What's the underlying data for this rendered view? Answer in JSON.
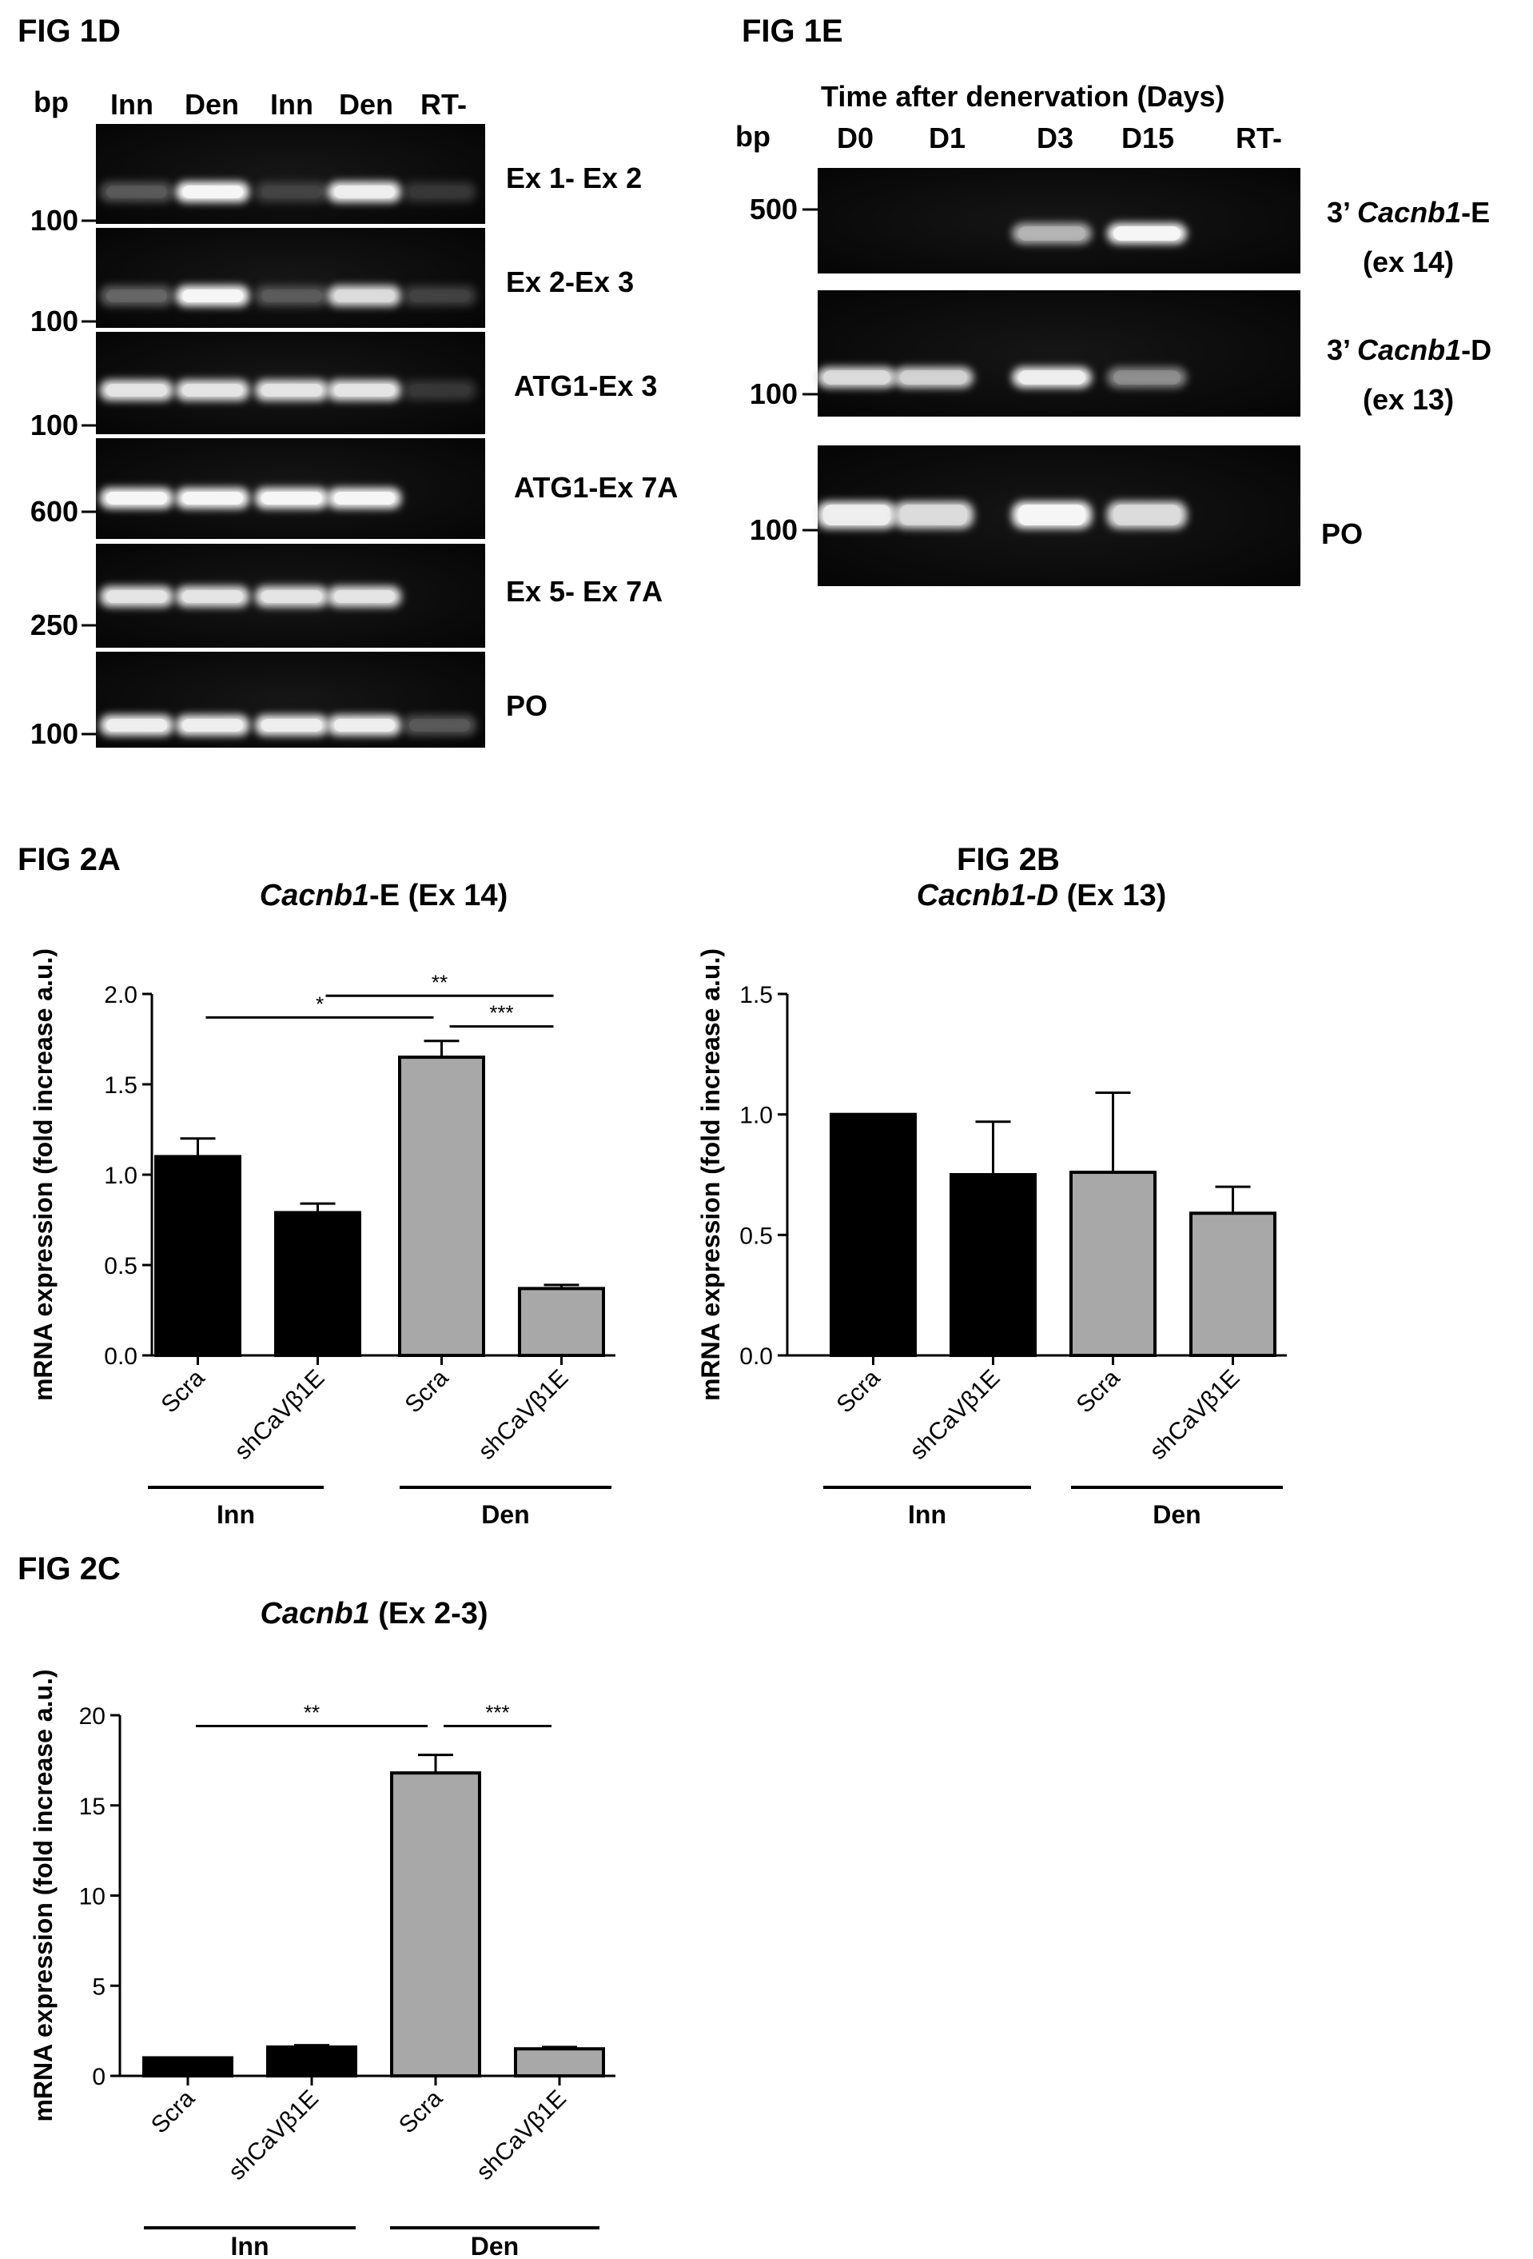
{
  "fig1d": {
    "panel_label": "FIG 1D",
    "bp_label": "bp",
    "lanes": [
      "Inn",
      "Den",
      "Inn",
      "Den",
      "RT-"
    ],
    "rows": [
      {
        "label": "Ex 1- Ex 2",
        "marker": "100",
        "bands": [
          0.25,
          0.95,
          0.15,
          0.9,
          0.1
        ]
      },
      {
        "label": "Ex 2-Ex 3",
        "marker": "100",
        "bands": [
          0.3,
          0.95,
          0.25,
          0.8,
          0.15
        ]
      },
      {
        "label": "ATG1-Ex 3",
        "marker": "100",
        "bands": [
          0.85,
          0.85,
          0.85,
          0.85,
          0.1
        ]
      },
      {
        "label": "ATG1-Ex 7A",
        "marker": "600",
        "bands": [
          0.95,
          0.95,
          0.95,
          0.95,
          0.0
        ]
      },
      {
        "label": "Ex 5- Ex 7A",
        "marker": "250",
        "bands": [
          0.85,
          0.85,
          0.85,
          0.85,
          0.0
        ]
      },
      {
        "label": "PO",
        "marker": "100",
        "bands": [
          0.9,
          0.9,
          0.9,
          0.9,
          0.25
        ]
      }
    ]
  },
  "fig1e": {
    "panel_label": "FIG 1E",
    "header": "Time after denervation (Days)",
    "bp_label": "bp",
    "lanes": [
      "D0",
      "D1",
      "D3",
      "D15",
      "RT-"
    ],
    "rows": [
      {
        "label_prefix": "3’ ",
        "label_italic": "Cacnb1",
        "label_suffix": "-E",
        "label_line2": "(ex 14)",
        "marker": "500",
        "bands": [
          0.0,
          0.0,
          0.6,
          0.95,
          0.0
        ]
      },
      {
        "label_prefix": "3’ ",
        "label_italic": "Cacnb1",
        "label_suffix": "-D",
        "label_line2": "(ex 13)",
        "marker": "100",
        "bands": [
          0.8,
          0.75,
          0.9,
          0.45,
          0.0
        ]
      },
      {
        "label_prefix": "PO",
        "label_italic": "",
        "label_suffix": "",
        "label_line2": "",
        "marker": "100",
        "bands": [
          0.9,
          0.8,
          0.95,
          0.8,
          0.0
        ]
      }
    ]
  },
  "chart_data": [
    {
      "id": "fig2a",
      "type": "bar",
      "panel_label": "FIG 2A",
      "title_italic": "Cacnb1",
      "title_rest": "-E (Ex 14)",
      "ylabel": "mRNA expression (fold increase a.u.)",
      "categories": [
        "Scra",
        "shCaVβ1E",
        "Scra",
        "shCaVβ1E"
      ],
      "groups": [
        {
          "label": "Inn",
          "span": [
            0,
            1
          ]
        },
        {
          "label": "Den",
          "span": [
            2,
            3
          ]
        }
      ],
      "values": [
        1.1,
        0.79,
        1.65,
        0.37
      ],
      "errors": [
        0.1,
        0.05,
        0.09,
        0.02
      ],
      "bar_colors": [
        "#000000",
        "#000000",
        "#a8a8a8",
        "#a8a8a8"
      ],
      "ylim": [
        0,
        2.0
      ],
      "yticks": [
        "0.0",
        "0.5",
        "1.0",
        "1.5",
        "2.0"
      ],
      "significance": [
        {
          "from": 0,
          "to": 2,
          "label": "*",
          "y": 1.87
        },
        {
          "from": 1,
          "to": 3,
          "label": "**",
          "y": 1.99
        },
        {
          "from": 2,
          "to": 3,
          "label": "***",
          "y": 1.82
        }
      ]
    },
    {
      "id": "fig2b",
      "type": "bar",
      "panel_label": "FIG 2B",
      "title_italic": "Cacnb1-D",
      "title_rest": " (Ex 13)",
      "ylabel": "mRNA expression (fold increase a.u.)",
      "categories": [
        "Scra",
        "shCaVβ1E",
        "Scra",
        "shCaVβ1E"
      ],
      "groups": [
        {
          "label": "Inn",
          "span": [
            0,
            1
          ]
        },
        {
          "label": "Den",
          "span": [
            2,
            3
          ]
        }
      ],
      "values": [
        1.0,
        0.75,
        0.76,
        0.59
      ],
      "errors": [
        0.0,
        0.22,
        0.33,
        0.11
      ],
      "bar_colors": [
        "#000000",
        "#000000",
        "#a8a8a8",
        "#a8a8a8"
      ],
      "ylim": [
        0,
        1.5
      ],
      "yticks": [
        "0.0",
        "0.5",
        "1.0",
        "1.5"
      ],
      "significance": []
    },
    {
      "id": "fig2c",
      "type": "bar",
      "panel_label": "FIG 2C",
      "title_italic": "Cacnb1",
      "title_rest": " (Ex 2-3)",
      "ylabel": "mRNA expression (fold increase a.u.)",
      "categories": [
        "Scra",
        "shCaVβ1E",
        "Scra",
        "shCaVβ1E"
      ],
      "groups": [
        {
          "label": "Inn",
          "span": [
            0,
            1
          ]
        },
        {
          "label": "Den",
          "span": [
            2,
            3
          ]
        }
      ],
      "values": [
        1.0,
        1.6,
        16.8,
        1.5
      ],
      "errors": [
        0.0,
        0.1,
        1.0,
        0.1
      ],
      "bar_colors": [
        "#000000",
        "#000000",
        "#a8a8a8",
        "#a8a8a8"
      ],
      "ylim": [
        0,
        20
      ],
      "yticks": [
        "0",
        "5",
        "10",
        "15",
        "20"
      ],
      "significance": [
        {
          "from": 0,
          "to": 2,
          "label": "**",
          "y": 19.4
        },
        {
          "from": 2,
          "to": 3,
          "label": "***",
          "y": 19.4
        }
      ]
    }
  ]
}
